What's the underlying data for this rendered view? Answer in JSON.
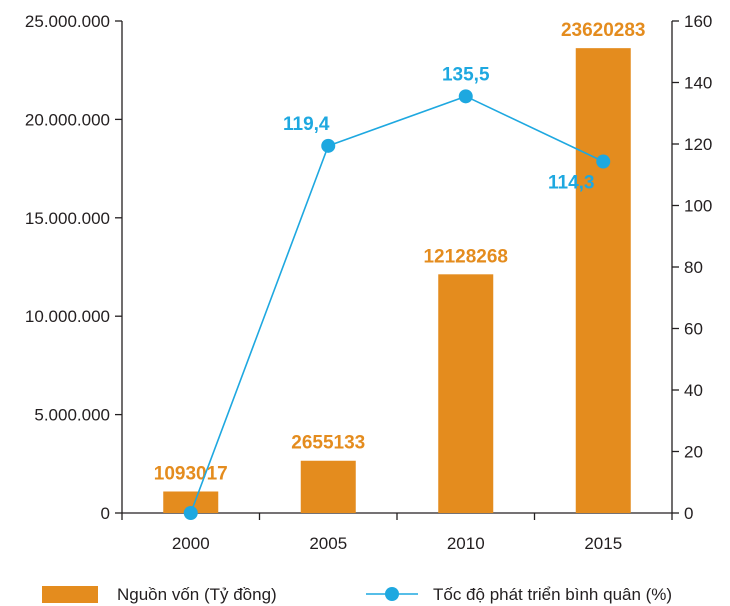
{
  "chart_data": {
    "type": "bar+line",
    "categories": [
      "2000",
      "2005",
      "2010",
      "2015"
    ],
    "series": [
      {
        "name": "Nguồn vốn (Tỷ đồng)",
        "type": "bar",
        "axis": "left",
        "values": [
          1093017,
          2655133,
          12128268,
          23620283
        ],
        "labels": [
          "1093017",
          "2655133",
          "12128268",
          "23620283"
        ]
      },
      {
        "name": "Tốc độ phát triển bình quân (%)",
        "type": "line",
        "axis": "right",
        "values": [
          0,
          119.4,
          135.5,
          114.3
        ],
        "labels": [
          "",
          "119,4",
          "135,5",
          "114,3"
        ]
      }
    ],
    "y_left": {
      "ylim": [
        0,
        25000000
      ],
      "ticks": [
        0,
        5000000,
        10000000,
        15000000,
        20000000,
        25000000
      ],
      "tick_labels": [
        "0",
        "5.000.000",
        "10.000.000",
        "15.000.000",
        "20.000.000",
        "25.000.000"
      ]
    },
    "y_right": {
      "ylim": [
        0,
        160
      ],
      "ticks": [
        0,
        20,
        40,
        60,
        80,
        100,
        120,
        140,
        160
      ],
      "tick_labels": [
        "0",
        "20",
        "40",
        "60",
        "80",
        "100",
        "120",
        "140",
        "160"
      ]
    },
    "legend_position": "bottom",
    "grid": false,
    "colors": {
      "bar": "#e48c1e",
      "line": "#1ea8e0",
      "axis": "#231f20"
    }
  }
}
